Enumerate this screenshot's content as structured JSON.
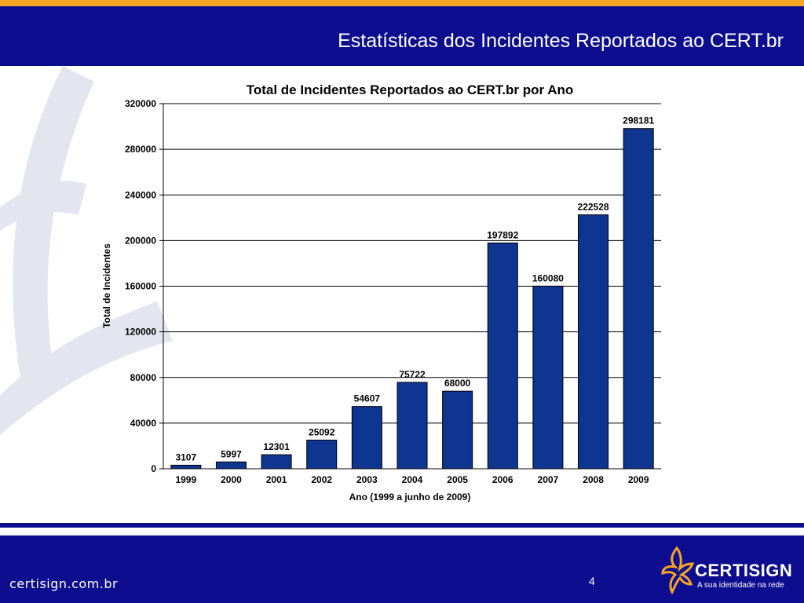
{
  "slide": {
    "title": "Estatísticas dos Incidentes Reportados ao CERT.br",
    "page_number": "4"
  },
  "footer": {
    "url": "certisign.com.br",
    "logo_name": "CERTISIGN",
    "logo_tagline": "A sua identidade na rede"
  },
  "colors": {
    "header_blue": "#0d0d8f",
    "accent_orange": "#f5a623",
    "bar_fill": "#0e3590",
    "watermark": "#e3e6ee"
  },
  "chart_data": {
    "type": "bar",
    "title": "Total de Incidentes Reportados ao CERT.br por Ano",
    "xlabel": "Ano (1999 a junho de 2009)",
    "ylabel": "Total de Incidentes",
    "categories": [
      "1999",
      "2000",
      "2001",
      "2002",
      "2003",
      "2004",
      "2005",
      "2006",
      "2007",
      "2008",
      "2009"
    ],
    "values": [
      3107,
      5997,
      12301,
      25092,
      54607,
      75722,
      68000,
      197892,
      160080,
      222528,
      298181
    ],
    "value_labels": [
      "3107",
      "5997",
      "12301",
      "25092",
      "54607",
      "75722",
      "68000",
      "197892",
      "160080",
      "222528",
      "298181"
    ],
    "ylim": [
      0,
      320000
    ],
    "yticks": [
      "0",
      "40000",
      "80000",
      "120000",
      "160000",
      "200000",
      "240000",
      "280000",
      "320000"
    ],
    "grid": true,
    "legend": "none"
  }
}
